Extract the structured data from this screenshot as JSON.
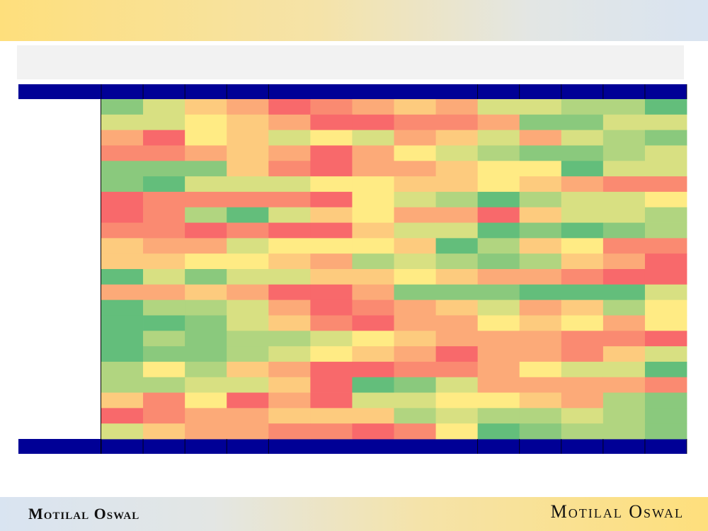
{
  "header": {
    "title": ""
  },
  "footer": {
    "logo_left": "Motilal Oswal",
    "logo_right": "Motilal Oswal"
  },
  "chart_data": {
    "type": "heatmap",
    "title": "",
    "columns": 14,
    "rows": 22,
    "scale": {
      "min": 1,
      "max": 9,
      "low_color": "#f8696b",
      "mid_color": "#ffeb84",
      "high_color": "#63be7b"
    },
    "values": [
      [
        8,
        6,
        4,
        3,
        1,
        2,
        3,
        4,
        3,
        6,
        6,
        7,
        7,
        9
      ],
      [
        6,
        6,
        5,
        4,
        3,
        1,
        1,
        2,
        2,
        3,
        8,
        8,
        6,
        6
      ],
      [
        3,
        1,
        5,
        4,
        6,
        5,
        6,
        3,
        4,
        6,
        3,
        6,
        7,
        8
      ],
      [
        2,
        2,
        3,
        4,
        3,
        1,
        3,
        5,
        6,
        7,
        8,
        8,
        7,
        6
      ],
      [
        8,
        8,
        8,
        4,
        2,
        1,
        3,
        3,
        4,
        5,
        5,
        9,
        6,
        6
      ],
      [
        8,
        9,
        6,
        6,
        6,
        5,
        5,
        4,
        4,
        5,
        4,
        3,
        2,
        2
      ],
      [
        1,
        2,
        2,
        2,
        2,
        1,
        5,
        6,
        7,
        9,
        7,
        6,
        6,
        5
      ],
      [
        1,
        2,
        7,
        9,
        6,
        4,
        5,
        3,
        3,
        1,
        4,
        6,
        6,
        7
      ],
      [
        2,
        2,
        1,
        2,
        1,
        1,
        4,
        6,
        6,
        9,
        8,
        9,
        8,
        7
      ],
      [
        4,
        3,
        3,
        6,
        5,
        5,
        5,
        4,
        9,
        7,
        4,
        5,
        2,
        2
      ],
      [
        4,
        4,
        5,
        5,
        4,
        3,
        7,
        6,
        7,
        8,
        7,
        4,
        3,
        1
      ],
      [
        9,
        6,
        8,
        6,
        6,
        4,
        4,
        5,
        4,
        3,
        3,
        2,
        1,
        1
      ],
      [
        3,
        3,
        4,
        3,
        1,
        1,
        3,
        8,
        8,
        8,
        9,
        9,
        9,
        6
      ],
      [
        9,
        7,
        7,
        6,
        3,
        1,
        2,
        3,
        4,
        6,
        3,
        4,
        7,
        5
      ],
      [
        9,
        9,
        8,
        6,
        4,
        2,
        1,
        3,
        3,
        5,
        4,
        5,
        3,
        5
      ],
      [
        9,
        7,
        8,
        7,
        7,
        6,
        5,
        4,
        3,
        3,
        3,
        2,
        2,
        1
      ],
      [
        9,
        8,
        8,
        7,
        6,
        5,
        4,
        3,
        1,
        3,
        3,
        2,
        4,
        6
      ],
      [
        7,
        5,
        7,
        4,
        3,
        1,
        1,
        2,
        2,
        3,
        5,
        6,
        6,
        9
      ],
      [
        7,
        7,
        6,
        6,
        4,
        1,
        9,
        8,
        6,
        3,
        3,
        3,
        3,
        2
      ],
      [
        4,
        2,
        5,
        1,
        3,
        1,
        6,
        6,
        5,
        5,
        4,
        3,
        7,
        8
      ],
      [
        1,
        2,
        3,
        3,
        4,
        4,
        4,
        7,
        6,
        7,
        7,
        6,
        7,
        8
      ],
      [
        6,
        4,
        3,
        3,
        2,
        2,
        1,
        2,
        5,
        9,
        8,
        7,
        7,
        8
      ]
    ]
  }
}
